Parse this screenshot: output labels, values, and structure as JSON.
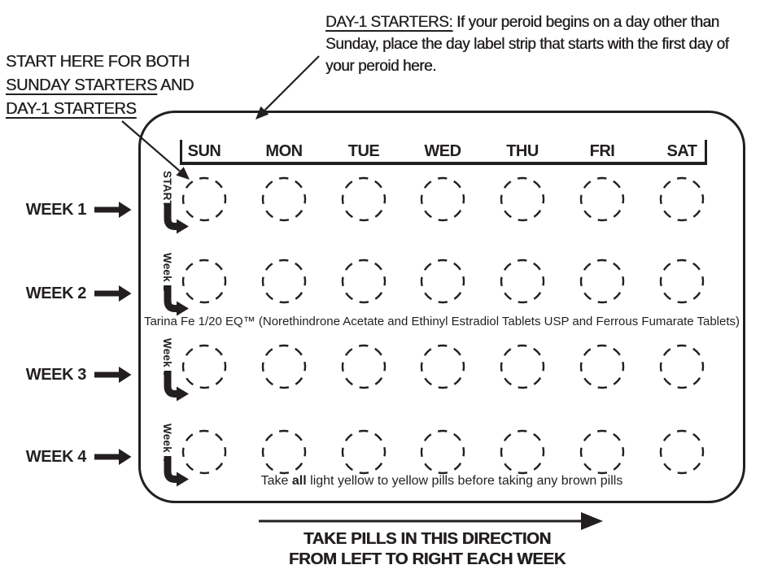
{
  "colors": {
    "ink": "#231f20",
    "paper": "#ffffff"
  },
  "callout_start_here": {
    "line1": "START HERE FOR BOTH",
    "line2_underlined": "SUNDAY STARTERS",
    "line2_rest": " AND",
    "line3_underlined": "DAY-1 STARTERS"
  },
  "callout_day1": {
    "lead_underlined": "DAY-1 STARTERS:",
    "rest": " If your peroid begins on a day other than Sunday, place the day label strip that starts with the first day of your peroid here."
  },
  "week_labels": [
    "WEEK 1",
    "WEEK 2",
    "WEEK 3",
    "WEEK 4"
  ],
  "pack": {
    "day_headers": [
      "SUN",
      "MON",
      "TUE",
      "WED",
      "THU",
      "FRI",
      "SAT"
    ],
    "rows": 4,
    "columns": 7,
    "strip_labels": [
      "START",
      "Week 2",
      "Week 3",
      "Week 4"
    ],
    "product_line": "Tarina Fe 1/20 EQ™ (Norethindrone Acetate and Ethinyl Estradiol Tablets USP and Ferrous Fumarate Tablets)",
    "note_prefix": "Take ",
    "note_bold": "all",
    "note_suffix": " light yellow to yellow pills before taking any brown pills"
  },
  "footer": {
    "line1": "TAKE PILLS IN THIS DIRECTION",
    "line2": "FROM LEFT TO RIGHT EACH WEEK"
  }
}
